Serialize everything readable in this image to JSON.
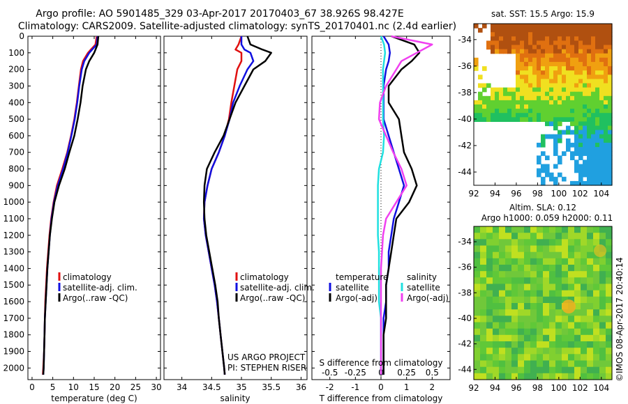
{
  "title": {
    "line1": "Argo profile: AO 5901485_329 03-Apr-2017 20170403_67 38.926S 98.427E",
    "line2": "Climatology: CARS2009. Satellite-adjusted climatology: synTS_20170401.nc (2.4d earlier)"
  },
  "legend": {
    "climatology": "climatology",
    "satellite_adj": "satellite-adj. clim.",
    "argo": "Argo(..raw -QC)"
  },
  "diff_legend": {
    "temperature_header": "temperature",
    "salinity_header": "salinity",
    "satellite": "satellite",
    "argo": "Argo(-adj)"
  },
  "project": {
    "name": "US ARGO PROJECT",
    "pi": "PI: STEPHEN RISER"
  },
  "credit": "©IMOS 08-Apr-2017 20:40:14",
  "colors": {
    "climatology": "#e01010",
    "satellite": "#1010e0",
    "argo": "#000000",
    "s_satellite": "#20e0e0",
    "s_argo": "#f040f0"
  },
  "depth_axis": {
    "ylim": [
      0,
      2070
    ],
    "ticks": [
      0,
      100,
      200,
      300,
      400,
      500,
      600,
      700,
      800,
      900,
      1000,
      1100,
      1200,
      1300,
      1400,
      1500,
      1600,
      1700,
      1800,
      1900,
      2000
    ]
  },
  "chart_data": [
    {
      "type": "line",
      "xlabel": "temperature (deg C)",
      "xlim": [
        -1,
        31
      ],
      "xticks": [
        0,
        5,
        10,
        15,
        20,
        25,
        30
      ],
      "depth": [
        0,
        50,
        100,
        150,
        200,
        300,
        400,
        500,
        600,
        700,
        800,
        900,
        1000,
        1100,
        1200,
        1300,
        1400,
        1500,
        1600,
        1700,
        1800,
        1900,
        2000,
        2040
      ],
      "series": [
        {
          "name": "climatology",
          "values": [
            15.6,
            15.3,
            13.5,
            12.3,
            11.8,
            11.3,
            10.8,
            10.2,
            9.4,
            8.5,
            7.3,
            6.0,
            5.2,
            4.6,
            4.2,
            3.9,
            3.6,
            3.4,
            3.2,
            3.1,
            3.0,
            2.9,
            2.7,
            2.6
          ]
        },
        {
          "name": "satellite-adj. clim.",
          "values": [
            15.8,
            15.6,
            13.8,
            12.6,
            12.0,
            11.4,
            10.9,
            10.3,
            9.5,
            8.6,
            7.5,
            6.2,
            5.3,
            4.7,
            4.3,
            4.0,
            3.7,
            3.5,
            3.3,
            3.1,
            3.0,
            2.9,
            2.8,
            2.7
          ]
        },
        {
          "name": "Argo(..raw -QC)",
          "values": [
            16.0,
            15.8,
            15.0,
            13.8,
            13.0,
            12.2,
            11.7,
            11.0,
            10.2,
            9.0,
            7.9,
            6.5,
            5.4,
            4.8,
            4.3,
            4.0,
            3.7,
            3.5,
            3.3,
            3.1,
            3.0,
            2.9,
            2.8,
            2.7
          ]
        }
      ]
    },
    {
      "type": "line",
      "xlabel": "salinity",
      "xlim": [
        33.7,
        36.1
      ],
      "xticks": [
        34,
        34.5,
        35,
        35.5,
        36
      ],
      "depth": [
        0,
        50,
        80,
        100,
        150,
        200,
        300,
        400,
        500,
        600,
        700,
        800,
        900,
        1000,
        1100,
        1200,
        1300,
        1400,
        1500,
        1600,
        1700,
        1800,
        1900,
        2000,
        2040
      ],
      "series": [
        {
          "name": "climatology",
          "values": [
            35.0,
            34.95,
            34.9,
            35.0,
            35.0,
            34.93,
            34.88,
            34.83,
            34.79,
            34.72,
            34.62,
            34.5,
            34.43,
            34.38,
            34.37,
            34.4,
            34.45,
            34.5,
            34.55,
            34.59,
            34.62,
            34.65,
            34.68,
            34.71,
            34.72
          ]
        },
        {
          "name": "satellite-adj. clim.",
          "values": [
            35.0,
            35.0,
            35.05,
            35.15,
            35.2,
            35.1,
            34.97,
            34.86,
            34.8,
            34.72,
            34.62,
            34.5,
            34.43,
            34.38,
            34.37,
            34.4,
            34.45,
            34.5,
            34.55,
            34.59,
            34.62,
            34.65,
            34.68,
            34.71,
            34.72
          ]
        },
        {
          "name": "Argo(..raw -QC)",
          "values": [
            35.1,
            35.15,
            35.35,
            35.5,
            35.4,
            35.2,
            35.05,
            34.9,
            34.8,
            34.7,
            34.55,
            34.42,
            34.38,
            34.37,
            34.38,
            34.41,
            34.46,
            34.51,
            34.56,
            34.6,
            34.62,
            34.65,
            34.68,
            34.71,
            34.72
          ]
        }
      ]
    },
    {
      "type": "line",
      "xlabel": "T difference from climatology",
      "top_xlabel": "S difference from climatology",
      "xlim": [
        -2.7,
        2.7
      ],
      "xticks": [
        -2,
        -1,
        0,
        1,
        2
      ],
      "top_xlim": [
        -0.675,
        0.675
      ],
      "top_xticks": [
        -0.5,
        -0.25,
        0,
        0.25,
        0.5
      ],
      "top_xtick_labels": [
        "-0.5",
        "-0.25",
        "0",
        "0.25",
        "0.5"
      ],
      "depth": [
        0,
        50,
        100,
        150,
        200,
        300,
        400,
        500,
        600,
        700,
        800,
        900,
        1000,
        1100,
        1200,
        1300,
        1400,
        1500,
        1600,
        1700,
        1800,
        1900,
        2000,
        2040
      ],
      "series": [
        {
          "name": "temperature satellite",
          "values": [
            0.1,
            0.3,
            0.35,
            0.3,
            0.2,
            0.1,
            0.1,
            0.1,
            0.3,
            0.5,
            0.7,
            0.9,
            0.7,
            0.5,
            0.4,
            0.3,
            0.3,
            0.2,
            0.2,
            0.1,
            0.1,
            0.1,
            0.1,
            0.1
          ]
        },
        {
          "name": "temperature Argo(-adj)",
          "values": [
            0.4,
            1.3,
            1.5,
            1.2,
            0.8,
            0.3,
            0.3,
            0.7,
            0.8,
            0.9,
            1.2,
            1.4,
            1.1,
            0.6,
            0.5,
            0.4,
            0.3,
            0.2,
            0.2,
            0.2,
            0.1,
            0.1,
            0.1,
            0.1
          ]
        },
        {
          "name": "salinity satellite",
          "values": [
            0.0,
            0.03,
            0.04,
            0.03,
            0.02,
            0.02,
            0.02,
            0.02,
            0.03,
            0.02,
            -0.02,
            -0.03,
            -0.03,
            -0.03,
            -0.03,
            -0.02,
            -0.02,
            -0.02,
            -0.02,
            0.0,
            0.0,
            0.0,
            0.0,
            0.0
          ]
        },
        {
          "name": "salinity Argo(-adj)",
          "values": [
            0.1,
            0.5,
            0.35,
            0.2,
            0.15,
            0.05,
            -0.01,
            -0.02,
            0.05,
            0.12,
            0.2,
            0.25,
            0.15,
            0.05,
            0.02,
            0.01,
            0.0,
            0.0,
            0.0,
            0.0,
            0.0,
            0.0,
            0.0,
            0.0
          ]
        }
      ]
    }
  ],
  "sst_map": {
    "title": "sat. SST: 15.5 Argo: 15.9",
    "lat_ticks": [
      -34,
      -36,
      -38,
      -40,
      -42,
      -44
    ],
    "lon_ticks": [
      92,
      94,
      96,
      98,
      100,
      102,
      104
    ],
    "lat_range": [
      -32.8,
      -45.0
    ],
    "lon_range": [
      92,
      105
    ]
  },
  "sla_map": {
    "title_line1": "Altim. SLA: 0.12",
    "title_line2": "Argo h1000: 0.059 h2000: 0.11",
    "lat_ticks": [
      -34,
      -36,
      -38,
      -40,
      -42,
      -44
    ],
    "lon_ticks": [
      92,
      94,
      96,
      98,
      100,
      102,
      104
    ],
    "lat_range": [
      -32.8,
      -44.8
    ],
    "lon_range": [
      92,
      105
    ]
  }
}
